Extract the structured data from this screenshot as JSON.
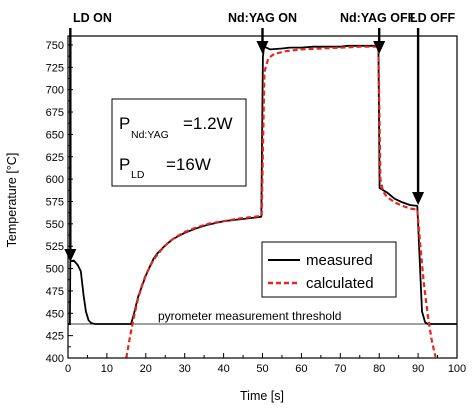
{
  "chart_data": {
    "type": "line",
    "xlabel": "Time [s]",
    "ylabel": "Temperature [°C]",
    "xlim": [
      0,
      100
    ],
    "ylim": [
      400,
      760
    ],
    "xticks": [
      0,
      10,
      20,
      30,
      40,
      50,
      60,
      70,
      80,
      90,
      100
    ],
    "yticks": [
      400,
      425,
      450,
      475,
      500,
      525,
      550,
      575,
      600,
      625,
      650,
      675,
      700,
      725,
      750
    ],
    "grid": false,
    "legend": {
      "placement": "center-right",
      "entries": [
        "measured",
        "calculated"
      ]
    },
    "series": [
      {
        "name": "measured",
        "style": "solid",
        "color": "#000000",
        "points": [
          [
            0,
            438
          ],
          [
            0.5,
            438
          ],
          [
            0.6,
            508
          ],
          [
            1.5,
            509
          ],
          [
            2.5,
            504
          ],
          [
            3.3,
            497
          ],
          [
            4.0,
            470
          ],
          [
            4.6,
            452
          ],
          [
            5.3,
            442
          ],
          [
            6,
            439
          ],
          [
            7,
            438
          ],
          [
            15,
            438
          ],
          [
            16.2,
            438
          ],
          [
            17,
            450
          ],
          [
            18,
            468
          ],
          [
            19,
            480
          ],
          [
            20,
            492
          ],
          [
            21,
            502
          ],
          [
            22,
            511
          ],
          [
            23,
            517
          ],
          [
            25,
            526
          ],
          [
            27,
            533
          ],
          [
            30,
            540
          ],
          [
            33,
            545
          ],
          [
            36,
            549
          ],
          [
            40,
            553
          ],
          [
            44,
            555
          ],
          [
            48,
            557
          ],
          [
            49.7,
            558
          ],
          [
            50.1,
            737
          ],
          [
            50.4,
            748
          ],
          [
            52,
            745
          ],
          [
            55,
            746
          ],
          [
            57,
            747
          ],
          [
            60,
            747
          ],
          [
            63,
            748
          ],
          [
            66,
            748
          ],
          [
            70,
            748
          ],
          [
            72,
            749
          ],
          [
            74,
            749
          ],
          [
            76,
            749
          ],
          [
            79.8,
            749
          ],
          [
            80.1,
            590
          ],
          [
            80.5,
            589
          ],
          [
            82,
            585
          ],
          [
            84,
            578
          ],
          [
            86,
            574
          ],
          [
            88,
            571
          ],
          [
            89.8,
            570
          ],
          [
            90.3,
            520
          ],
          [
            91,
            452
          ],
          [
            91.8,
            440
          ],
          [
            92.5,
            438
          ],
          [
            100,
            438
          ]
        ]
      },
      {
        "name": "calculated",
        "style": "dashed",
        "color": "#e8261f",
        "points": [
          [
            15,
            400
          ],
          [
            16,
            425
          ],
          [
            17,
            447
          ],
          [
            18,
            466
          ],
          [
            19,
            481
          ],
          [
            20,
            493
          ],
          [
            22,
            510
          ],
          [
            24,
            521
          ],
          [
            26,
            530
          ],
          [
            28,
            536
          ],
          [
            30,
            541
          ],
          [
            33,
            546
          ],
          [
            36,
            550
          ],
          [
            40,
            553
          ],
          [
            44,
            556
          ],
          [
            48,
            558
          ],
          [
            49.8,
            559
          ],
          [
            50.5,
            720
          ],
          [
            51.5,
            735
          ],
          [
            53,
            740
          ],
          [
            56,
            743
          ],
          [
            60,
            745
          ],
          [
            65,
            746
          ],
          [
            70,
            747
          ],
          [
            75,
            748
          ],
          [
            79.8,
            748
          ],
          [
            80.3,
            600
          ],
          [
            81,
            586
          ],
          [
            82,
            580
          ],
          [
            84,
            574
          ],
          [
            86,
            570
          ],
          [
            88,
            567
          ],
          [
            89.8,
            566
          ],
          [
            90.5,
            530
          ],
          [
            91,
            505
          ],
          [
            91.5,
            483
          ],
          [
            92,
            465
          ],
          [
            92.5,
            448
          ],
          [
            93,
            433
          ],
          [
            93.5,
            420
          ],
          [
            94,
            410
          ],
          [
            94.5,
            401
          ]
        ]
      }
    ],
    "annotations": {
      "ld_on": {
        "label": "LD ON",
        "x": 0.6
      },
      "ndyag_on": {
        "label": "Nd:YAG ON",
        "x": 50
      },
      "ndyag_off": {
        "label": "Nd:YAG OFF",
        "x": 80
      },
      "ld_off": {
        "label": "LD OFF",
        "x": 90
      },
      "threshold": {
        "label": "pyrometer measurement threshold",
        "y": 438
      }
    },
    "params": {
      "line1_main": "P",
      "line1_sub": "Nd:YAG",
      "line1_value": "=1.2W",
      "line2_main": "P",
      "line2_sub": "LD",
      "line2_value": "=16W"
    }
  }
}
